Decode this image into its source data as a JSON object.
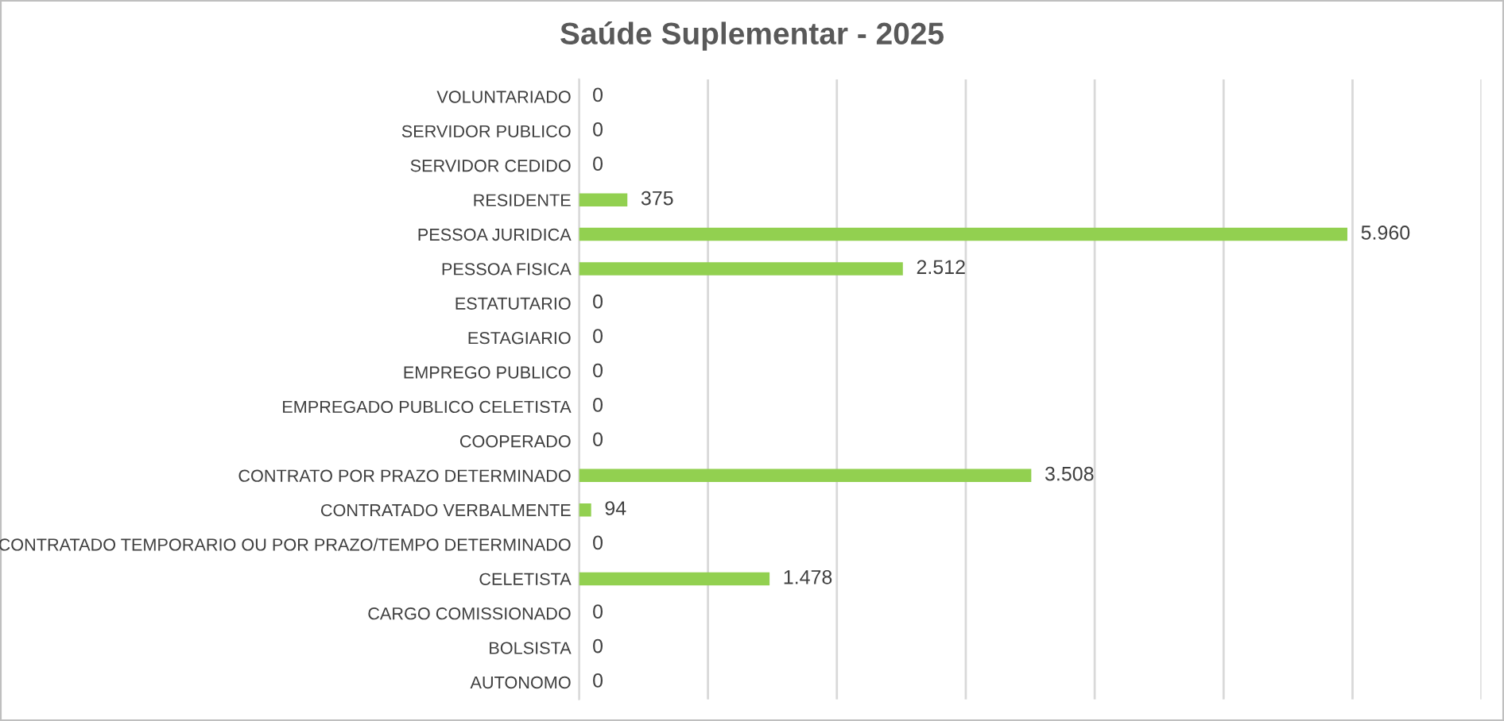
{
  "chart_data": {
    "type": "bar",
    "orientation": "horizontal",
    "title": "Saúde Suplementar - 2025",
    "categories": [
      "VOLUNTARIADO",
      "SERVIDOR PUBLICO",
      "SERVIDOR CEDIDO",
      "RESIDENTE",
      "PESSOA JURIDICA",
      "PESSOA FISICA",
      "ESTATUTARIO",
      "ESTAGIARIO",
      "EMPREGO PUBLICO",
      "EMPREGADO PUBLICO CELETISTA",
      "COOPERADO",
      "CONTRATO POR PRAZO DETERMINADO",
      "CONTRATADO VERBALMENTE",
      "CONTRATADO TEMPORARIO OU POR PRAZO/TEMPO DETERMINADO",
      "CELETISTA",
      "CARGO COMISSIONADO",
      "BOLSISTA",
      "AUTONOMO"
    ],
    "values": [
      0,
      0,
      0,
      375,
      5960,
      2512,
      0,
      0,
      0,
      0,
      0,
      3508,
      94,
      0,
      1478,
      0,
      0,
      0
    ],
    "value_labels": [
      "0",
      "0",
      "0",
      "375",
      "5.960",
      "2.512",
      "0",
      "0",
      "0",
      "0",
      "0",
      "3.508",
      "94",
      "0",
      "1.478",
      "0",
      "0",
      "0"
    ],
    "color": "#92d050",
    "xlim": [
      0,
      7000
    ],
    "xticks": [
      {
        "value": 0,
        "label": null
      },
      {
        "value": 1000,
        "label": null
      },
      {
        "value": 2000,
        "label": null
      },
      {
        "value": 3000,
        "label": null
      },
      {
        "value": 4000,
        "label": null
      },
      {
        "value": 5000,
        "label": null
      },
      {
        "value": 6000,
        "label": null
      },
      {
        "value": 7000,
        "label": null
      }
    ],
    "tick_labels": "y",
    "grid": "x",
    "legend": false
  }
}
